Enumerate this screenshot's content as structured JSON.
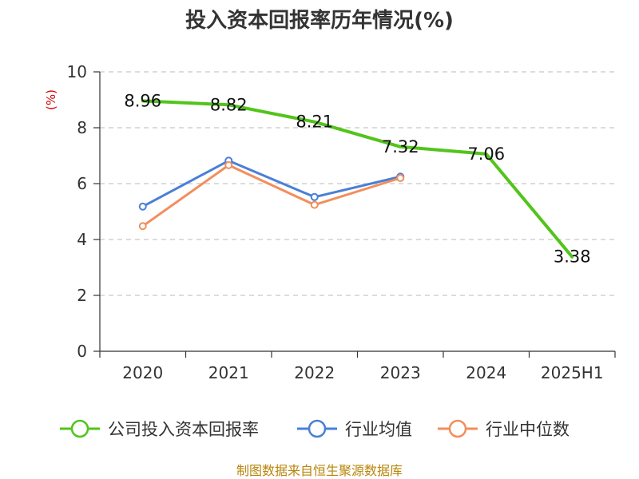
{
  "chart_data": {
    "type": "line",
    "title": "投入资本回报率历年情况(%)",
    "ylabel": "(%)",
    "ylim": [
      0,
      10
    ],
    "yticks": [
      0,
      2,
      4,
      6,
      8,
      10
    ],
    "categories": [
      "2020",
      "2021",
      "2022",
      "2023",
      "2024",
      "2025H1"
    ],
    "grid": true,
    "legend_position": "bottom",
    "series": [
      {
        "name": "公司投入资本回报率",
        "color": "#52c41a",
        "values": [
          8.96,
          8.82,
          8.21,
          7.32,
          7.06,
          3.38
        ],
        "show_labels": true
      },
      {
        "name": "行业均值",
        "color": "#4a7fd8",
        "values": [
          5.18,
          6.82,
          5.52,
          6.25,
          null,
          null
        ],
        "show_labels": false
      },
      {
        "name": "行业中位数",
        "color": "#f28e5c",
        "values": [
          4.48,
          6.66,
          5.24,
          6.2,
          null,
          null
        ],
        "show_labels": false
      }
    ]
  },
  "footer": {
    "source": "制图数据来自恒生聚源数据库"
  }
}
